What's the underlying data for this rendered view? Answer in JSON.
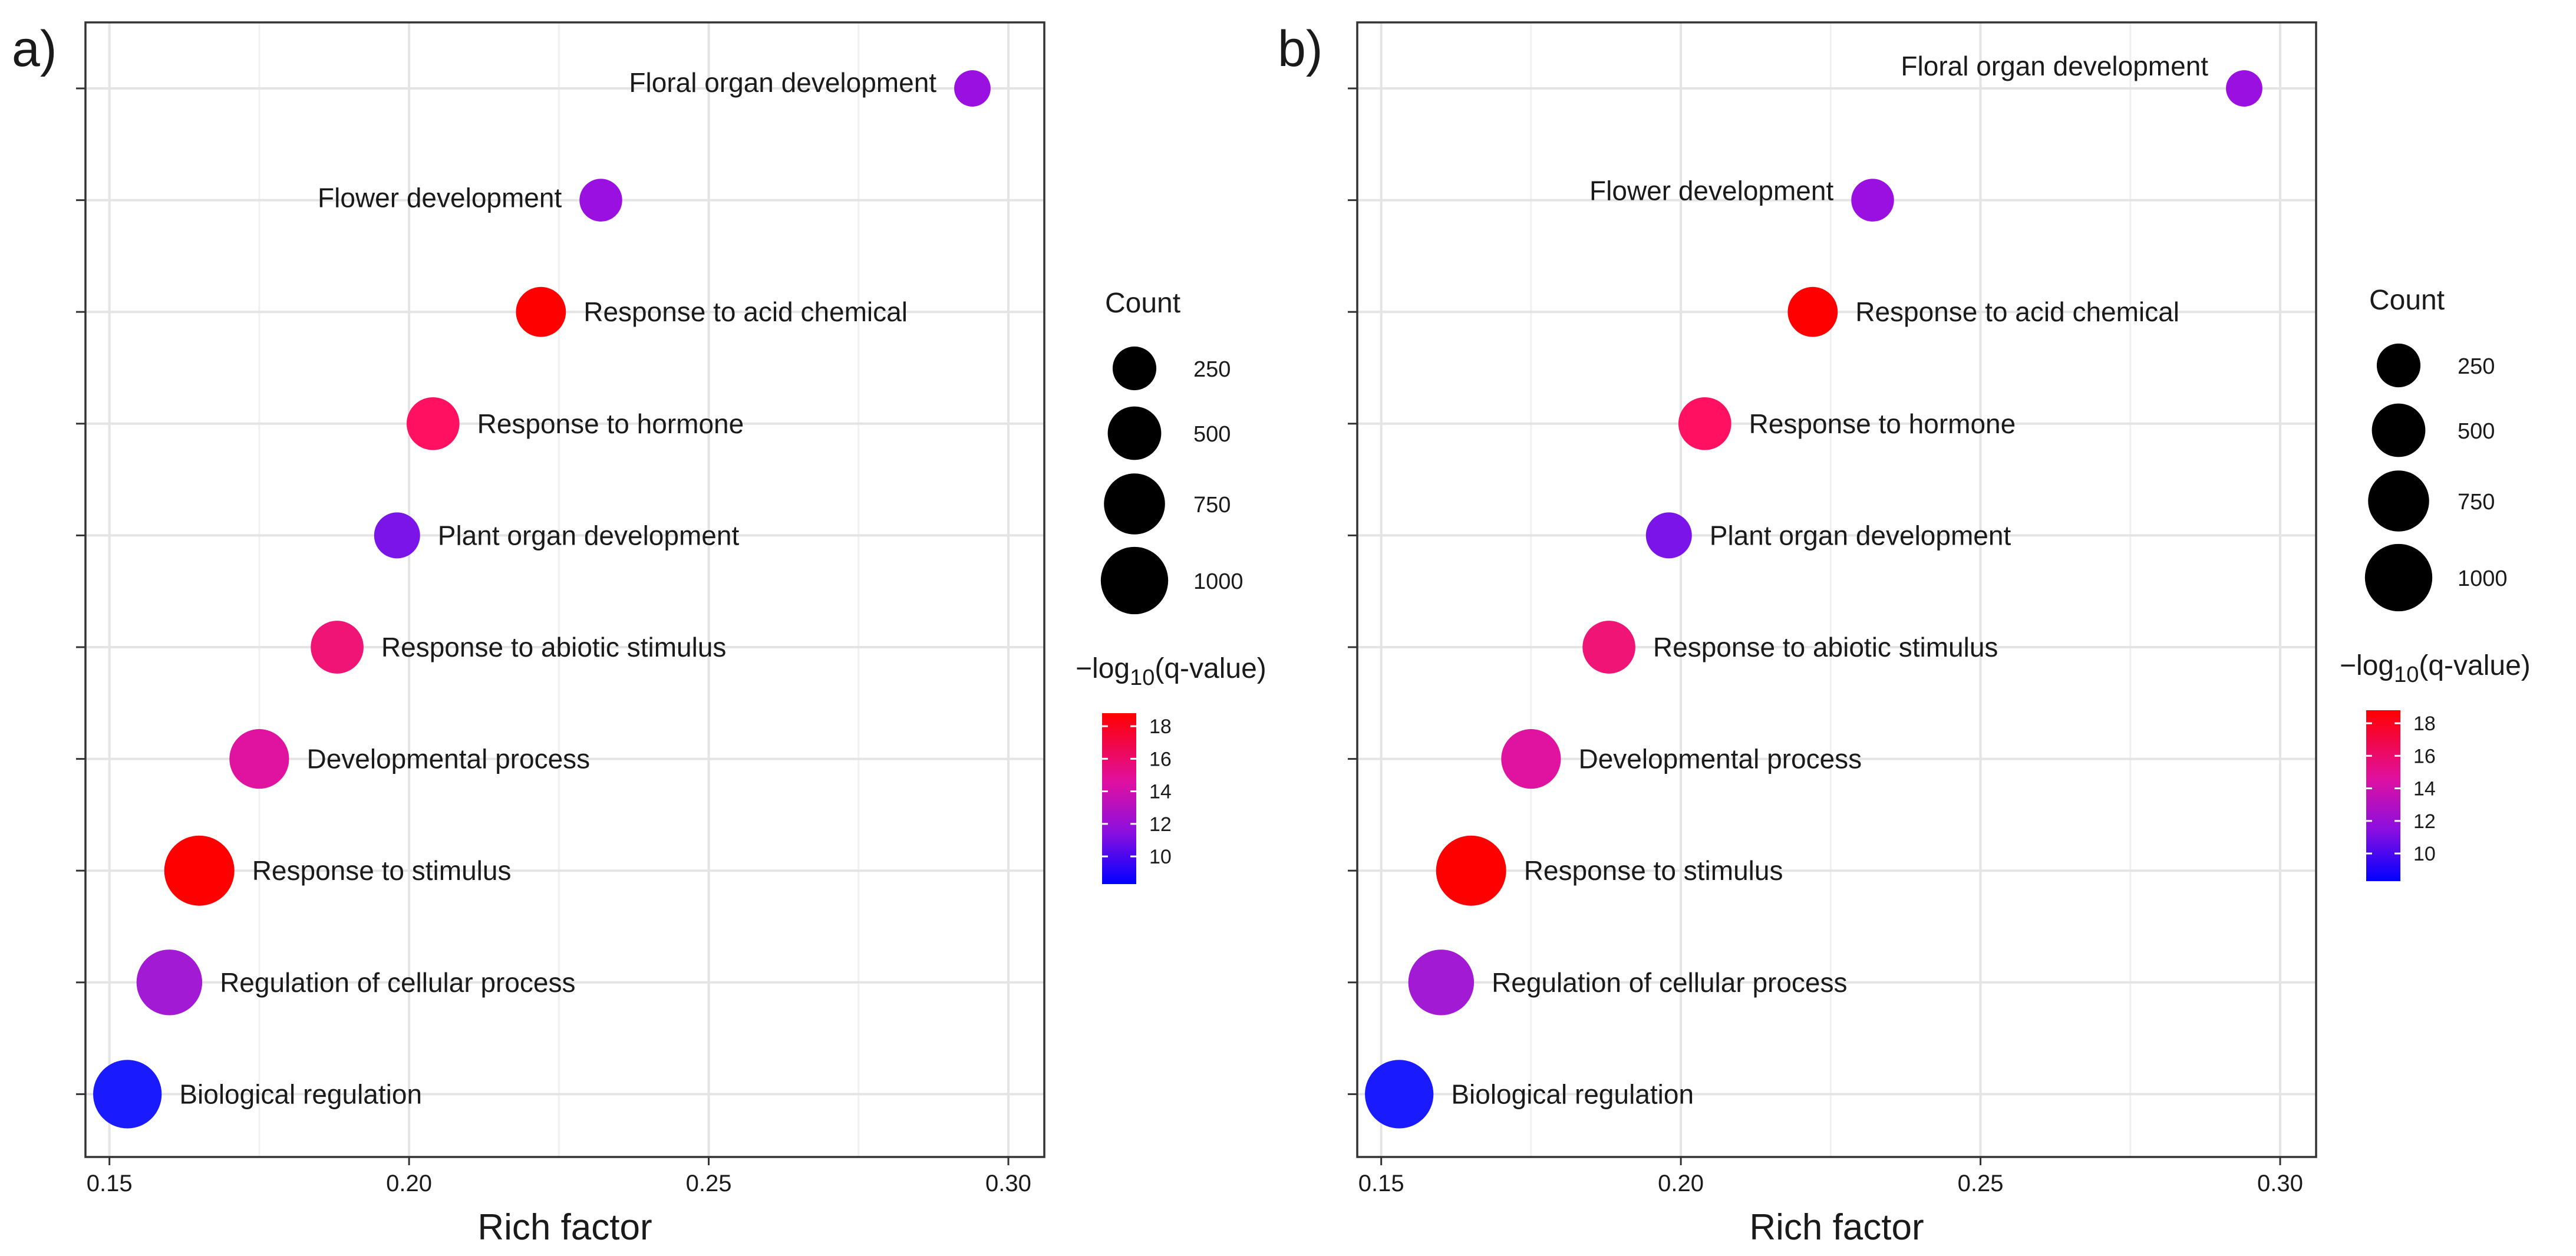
{
  "chart_data": [
    {
      "type": "scatter",
      "panel_label": "a)",
      "title": "",
      "xlabel": "Rich factor",
      "ylabel": "",
      "xlim": [
        0.146,
        0.306
      ],
      "x_ticks": [
        "0.15",
        "0.20",
        "0.25",
        "0.30"
      ],
      "grid": true,
      "points": [
        {
          "term": "Biological regulation",
          "rich_factor": 0.153,
          "count": 1050,
          "neg_log10_q": 9.0,
          "color": "#1a1aff"
        },
        {
          "term": "Regulation of cellular process",
          "rich_factor": 0.16,
          "count": 930,
          "neg_log10_q": 11.5,
          "color": "#a21ad4"
        },
        {
          "term": "Response to stimulus",
          "rich_factor": 0.165,
          "count": 1120,
          "neg_log10_q": 18.5,
          "color": "#ff0000"
        },
        {
          "term": "Developmental process",
          "rich_factor": 0.175,
          "count": 700,
          "neg_log10_q": 13.5,
          "color": "#e012a0"
        },
        {
          "term": "Response to abiotic stimulus",
          "rich_factor": 0.188,
          "count": 480,
          "neg_log10_q": 15.0,
          "color": "#f01477"
        },
        {
          "term": "Plant organ development",
          "rich_factor": 0.198,
          "count": 300,
          "neg_log10_q": 10.5,
          "color": "#7a14e8"
        },
        {
          "term": "Response to hormone",
          "rich_factor": 0.204,
          "count": 480,
          "neg_log10_q": 16.0,
          "color": "#ff1060"
        },
        {
          "term": "Response to acid chemical",
          "rich_factor": 0.222,
          "count": 400,
          "neg_log10_q": 18.5,
          "color": "#ff0000"
        },
        {
          "term": "Flower development",
          "rich_factor": 0.232,
          "count": 230,
          "neg_log10_q": 11.0,
          "color": "#9a10e0"
        },
        {
          "term": "Floral organ development",
          "rich_factor": 0.294,
          "count": 120,
          "neg_log10_q": 11.0,
          "color": "#9a10e0"
        }
      ],
      "legend": {
        "size_title": "Count",
        "size_values": [
          "250",
          "500",
          "750",
          "1000"
        ],
        "color_title_prefix": "−log",
        "color_title_sub": "10",
        "color_title_suffix": "(q-value)",
        "color_ticks": [
          "18",
          "16",
          "14",
          "12",
          "10"
        ],
        "color_low": "#0000ff",
        "color_high": "#ff0000"
      }
    },
    {
      "type": "scatter",
      "panel_label": "b)",
      "title": "",
      "xlabel": "Rich factor",
      "ylabel": "",
      "xlim": [
        0.146,
        0.306
      ],
      "x_ticks": [
        "0.15",
        "0.20",
        "0.25",
        "0.30"
      ],
      "grid": true,
      "points": [
        {
          "term": "Biological regulation",
          "rich_factor": 0.153,
          "count": 1050,
          "neg_log10_q": 9.0,
          "color": "#1a1aff"
        },
        {
          "term": "Regulation of cellular process",
          "rich_factor": 0.16,
          "count": 930,
          "neg_log10_q": 11.5,
          "color": "#a21ad4"
        },
        {
          "term": "Response to stimulus",
          "rich_factor": 0.165,
          "count": 1120,
          "neg_log10_q": 18.5,
          "color": "#ff0000"
        },
        {
          "term": "Developmental process",
          "rich_factor": 0.175,
          "count": 700,
          "neg_log10_q": 13.5,
          "color": "#e012a0"
        },
        {
          "term": "Response to abiotic stimulus",
          "rich_factor": 0.188,
          "count": 480,
          "neg_log10_q": 15.0,
          "color": "#f01477"
        },
        {
          "term": "Plant organ development",
          "rich_factor": 0.198,
          "count": 300,
          "neg_log10_q": 10.5,
          "color": "#7a14e8"
        },
        {
          "term": "Response to hormone",
          "rich_factor": 0.204,
          "count": 480,
          "neg_log10_q": 16.0,
          "color": "#ff1060"
        },
        {
          "term": "Response to acid chemical",
          "rich_factor": 0.222,
          "count": 400,
          "neg_log10_q": 18.5,
          "color": "#ff0000"
        },
        {
          "term": "Flower development",
          "rich_factor": 0.232,
          "count": 230,
          "neg_log10_q": 11.0,
          "color": "#9a10e0"
        },
        {
          "term": "Floral organ development",
          "rich_factor": 0.294,
          "count": 120,
          "neg_log10_q": 11.0,
          "color": "#9a10e0"
        }
      ],
      "legend": {
        "size_title": "Count",
        "size_values": [
          "250",
          "500",
          "750",
          "1000"
        ],
        "color_title_prefix": "−log",
        "color_title_sub": "10",
        "color_title_suffix": "(q-value)",
        "color_ticks": [
          "18",
          "16",
          "14",
          "12",
          "10"
        ],
        "color_low": "#0000ff",
        "color_high": "#ff0000"
      }
    }
  ]
}
